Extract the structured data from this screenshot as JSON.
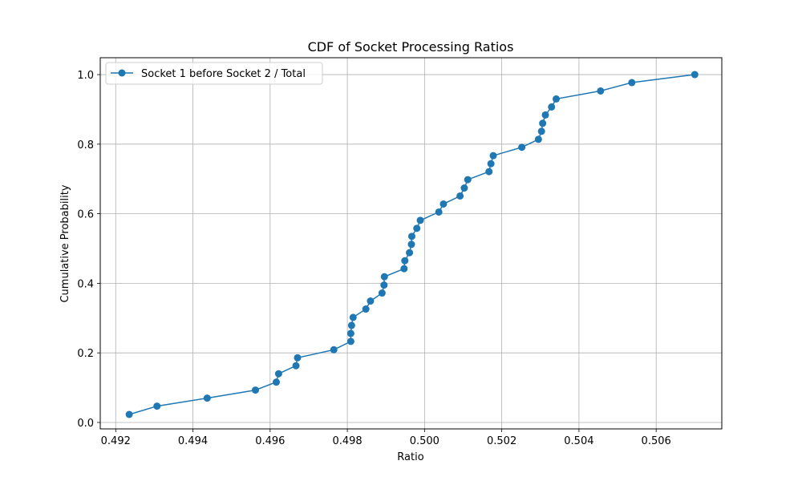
{
  "chart_data": {
    "type": "line",
    "title": "CDF of Socket Processing Ratios",
    "xlabel": "Ratio",
    "ylabel": "Cumulative Probability",
    "xlim": [
      0.4916,
      0.5077
    ],
    "ylim": [
      -0.0185,
      1.0485
    ],
    "xticks": [
      0.492,
      0.494,
      0.496,
      0.498,
      0.5,
      0.502,
      0.504,
      0.506
    ],
    "xtick_labels": [
      "0.492",
      "0.494",
      "0.496",
      "0.498",
      "0.500",
      "0.502",
      "0.504",
      "0.506"
    ],
    "yticks": [
      0.0,
      0.2,
      0.4,
      0.6,
      0.8,
      1.0
    ],
    "ytick_labels": [
      "0.0",
      "0.2",
      "0.4",
      "0.6",
      "0.8",
      "1.0"
    ],
    "grid": true,
    "legend_position": "top-left",
    "color": "#1f77b4",
    "series": [
      {
        "name": "Socket 1 before Socket 2 / Total",
        "x": [
          0.49235,
          0.49307,
          0.49437,
          0.49562,
          0.49616,
          0.49622,
          0.49667,
          0.49671,
          0.49765,
          0.49809,
          0.49809,
          0.49811,
          0.49815,
          0.49848,
          0.4986,
          0.4989,
          0.49895,
          0.49896,
          0.49947,
          0.49949,
          0.49961,
          0.49966,
          0.49967,
          0.4998,
          0.49989,
          0.50037,
          0.50049,
          0.50092,
          0.50103,
          0.50112,
          0.50167,
          0.50172,
          0.50178,
          0.50252,
          0.50295,
          0.50303,
          0.50306,
          0.50313,
          0.50329,
          0.50341,
          0.50456,
          0.50537,
          0.507
        ],
        "y": [
          0.023,
          0.047,
          0.07,
          0.093,
          0.116,
          0.14,
          0.163,
          0.186,
          0.209,
          0.233,
          0.256,
          0.279,
          0.302,
          0.326,
          0.349,
          0.372,
          0.395,
          0.419,
          0.442,
          0.465,
          0.488,
          0.512,
          0.535,
          0.558,
          0.581,
          0.605,
          0.628,
          0.651,
          0.674,
          0.698,
          0.721,
          0.744,
          0.767,
          0.791,
          0.814,
          0.837,
          0.86,
          0.884,
          0.907,
          0.93,
          0.953,
          0.977,
          1.0
        ]
      }
    ]
  }
}
